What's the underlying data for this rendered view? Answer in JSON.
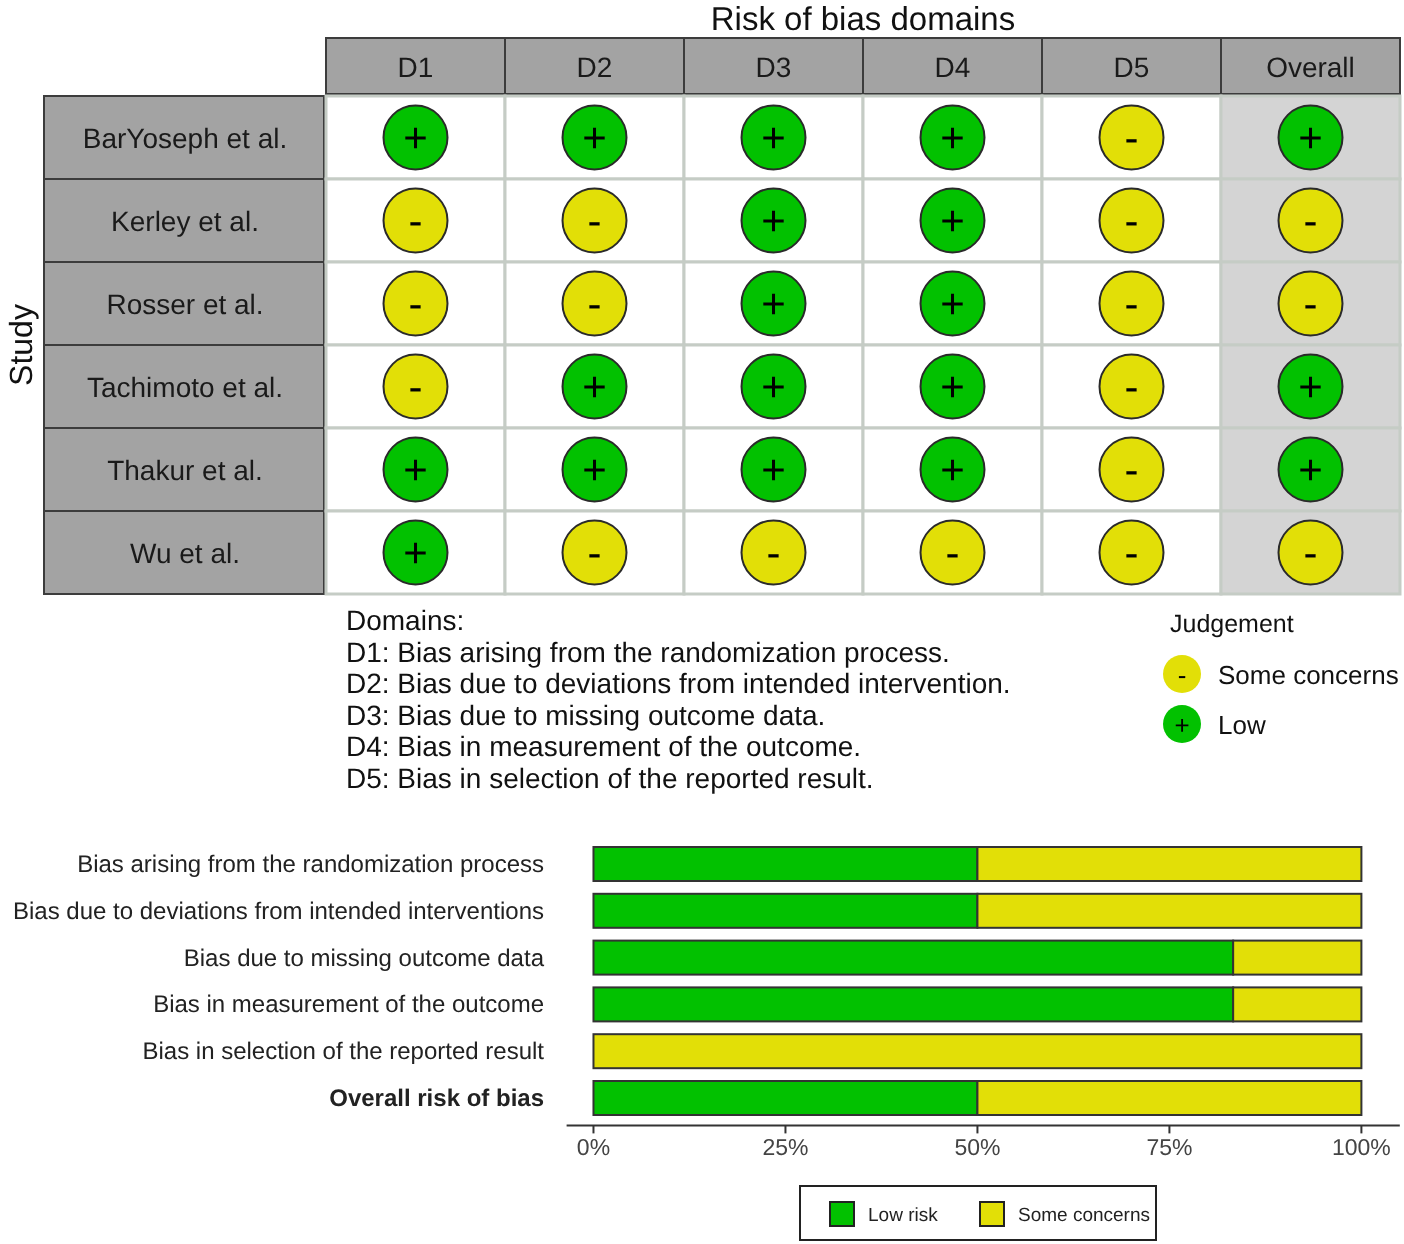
{
  "chart_data": [
    {
      "type": "heatmap",
      "title": "Risk of bias domains",
      "ylabel": "Study",
      "categories": [
        "D1",
        "D2",
        "D3",
        "D4",
        "D5",
        "Overall"
      ],
      "y_categories": [
        "BarYoseph et al.",
        "Kerley et al.",
        "Rosser et al.",
        "Tachimoto et al.",
        "Thakur et al.",
        "Wu et al."
      ],
      "cells": [
        [
          "+",
          "+",
          "+",
          "+",
          "-",
          "+"
        ],
        [
          "-",
          "-",
          "+",
          "+",
          "-",
          "-"
        ],
        [
          "-",
          "-",
          "+",
          "+",
          "-",
          "-"
        ],
        [
          "-",
          "+",
          "+",
          "+",
          "-",
          "+"
        ],
        [
          "+",
          "+",
          "+",
          "+",
          "-",
          "+"
        ],
        [
          "+",
          "-",
          "-",
          "-",
          "-",
          "-"
        ]
      ],
      "annotations": [
        "Domains:",
        "D1: Bias arising from the randomization process.",
        "D2: Bias due to deviations from intended intervention.",
        "D3: Bias due to missing outcome data.",
        "D4: Bias in measurement of the outcome.",
        "D5: Bias in selection of the reported result."
      ]
    },
    {
      "type": "other",
      "legend_title": "Judgement",
      "categories": [
        "Some concerns",
        "Low"
      ],
      "colors": [
        "#e2df07",
        "#02c100"
      ],
      "value_labels": [
        "-",
        "+"
      ]
    },
    {
      "type": "bar",
      "orientation": "horizontal",
      "stacked": true,
      "categories": [
        "Bias arising from the randomization process",
        "Bias due to deviations from intended interventions",
        "Bias due to missing outcome data",
        "Bias in measurement of the outcome",
        "Bias in selection of the reported result",
        "Overall risk of bias"
      ],
      "series": [
        {
          "name": "Low risk",
          "color": "#02c100",
          "values": [
            50,
            50,
            83.3,
            83.3,
            0,
            50
          ]
        },
        {
          "name": "Some concerns",
          "color": "#e2df07",
          "values": [
            50,
            50,
            16.7,
            16.7,
            100,
            50
          ]
        }
      ],
      "xlim": [
        -3.5,
        105
      ],
      "xticks": [
        {
          "value": 0,
          "label": "0%"
        },
        {
          "value": 25,
          "label": "25%"
        },
        {
          "value": 50,
          "label": "50%"
        },
        {
          "value": 75,
          "label": "75%"
        },
        {
          "value": 100,
          "label": "100%"
        }
      ],
      "legend": "bottom"
    }
  ]
}
